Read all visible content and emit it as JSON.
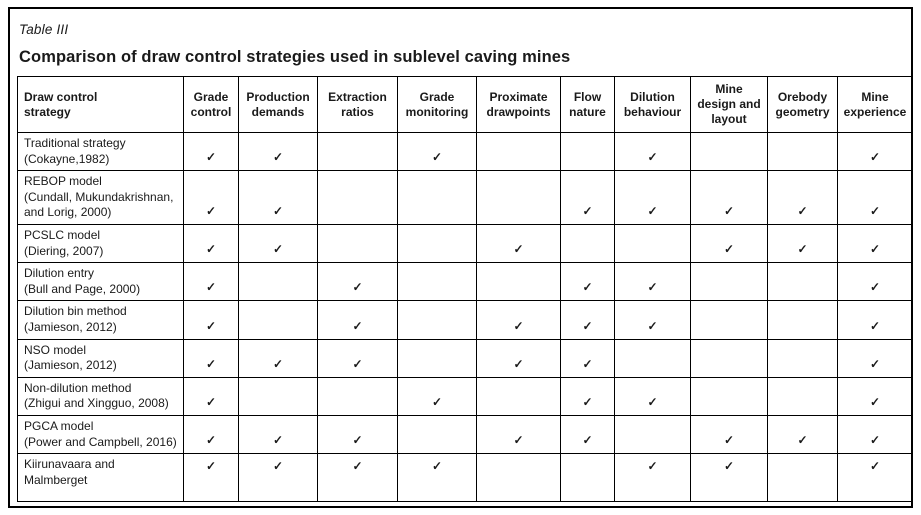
{
  "table_label": "Table III",
  "title": "Comparison of draw control strategies used in sublevel caving mines",
  "check_glyph": "✓",
  "colors": {
    "border": "#000000",
    "text": "#1a1a1a",
    "background": "#ffffff"
  },
  "columns": [
    "Draw control\nstrategy",
    "Grade\ncontrol",
    "Production\ndemands",
    "Extraction\nratios",
    "Grade\nmonitoring",
    "Proximate\ndrawpoints",
    "Flow\nnature",
    "Dilution\nbehaviour",
    "Mine\ndesign and\nlayout",
    "Orebody\ngeometry",
    "Mine\nexperience"
  ],
  "rows": [
    {
      "strategy": "Traditional strategy\n(Cokayne,1982)",
      "checks": [
        1,
        1,
        0,
        1,
        0,
        0,
        1,
        0,
        0,
        1
      ]
    },
    {
      "strategy": "REBOP model\n(Cundall, Mukundakrishnan,\nand Lorig, 2000)",
      "checks": [
        1,
        1,
        0,
        0,
        0,
        1,
        1,
        1,
        1,
        1
      ]
    },
    {
      "strategy": "PCSLC model\n(Diering, 2007)",
      "checks": [
        1,
        1,
        0,
        0,
        1,
        0,
        0,
        1,
        1,
        1
      ]
    },
    {
      "strategy": "Dilution entry\n(Bull and Page, 2000)",
      "checks": [
        1,
        0,
        1,
        0,
        0,
        1,
        1,
        0,
        0,
        1
      ]
    },
    {
      "strategy": "Dilution bin method\n(Jamieson, 2012)",
      "checks": [
        1,
        0,
        1,
        0,
        1,
        1,
        1,
        0,
        0,
        1
      ]
    },
    {
      "strategy": "NSO model\n(Jamieson, 2012)",
      "checks": [
        1,
        1,
        1,
        0,
        1,
        1,
        0,
        0,
        0,
        1
      ]
    },
    {
      "strategy": "Non-dilution method\n(Zhigui and Xingguo, 2008)",
      "checks": [
        1,
        0,
        0,
        1,
        0,
        1,
        1,
        0,
        0,
        1
      ]
    },
    {
      "strategy": "PGCA model\n(Power and Campbell, 2016)",
      "checks": [
        1,
        1,
        1,
        0,
        1,
        1,
        0,
        1,
        1,
        1
      ]
    },
    {
      "strategy": "Kiirunavaara and\nMalmberget",
      "checks": [
        1,
        1,
        1,
        1,
        0,
        0,
        1,
        1,
        0,
        1
      ]
    }
  ]
}
